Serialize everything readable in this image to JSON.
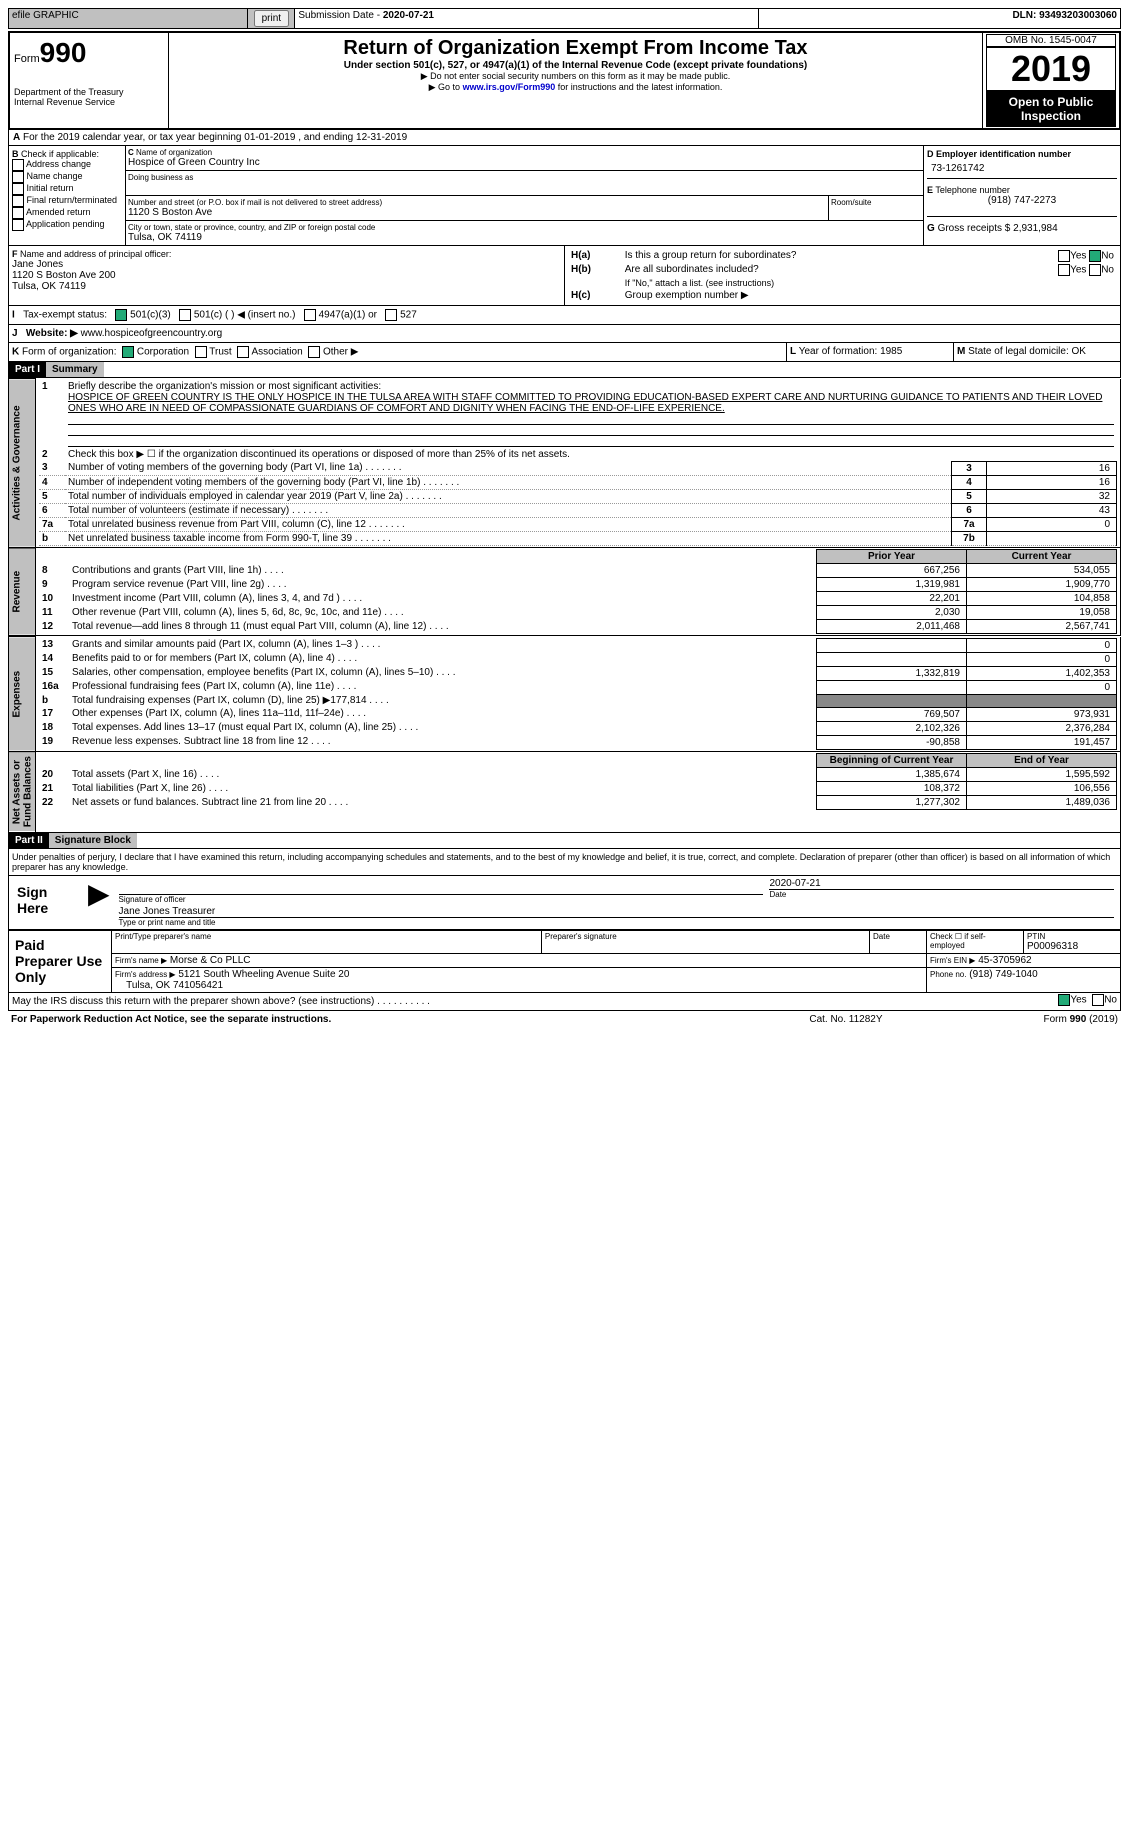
{
  "topbar": {
    "efile": "efile GRAPHIC",
    "print": "print",
    "subdate_label": "Submission Date - ",
    "subdate": "2020-07-21",
    "dln_label": "DLN: ",
    "dln": "93493203003060"
  },
  "header": {
    "form_prefix": "Form",
    "form_no": "990",
    "dept": "Department of the Treasury\nInternal Revenue Service",
    "title": "Return of Organization Exempt From Income Tax",
    "sub": "Under section 501(c), 527, or 4947(a)(1) of the Internal Revenue Code (except private foundations)",
    "note1": "▶ Do not enter social security numbers on this form as it may be made public.",
    "note2_pre": "▶ Go to ",
    "note2_link": "www.irs.gov/Form990",
    "note2_post": " for instructions and the latest information.",
    "omb": "OMB No. 1545-0047",
    "year": "2019",
    "pub": "Open to Public Inspection"
  },
  "A": {
    "line": "For the 2019 calendar year, or tax year beginning 01-01-2019   , and ending 12-31-2019"
  },
  "B": {
    "label": "Check if applicable:",
    "items": [
      "Address change",
      "Name change",
      "Initial return",
      "Final return/terminated",
      "Amended return",
      "Application pending"
    ]
  },
  "C": {
    "label": "Name of organization",
    "org": "Hospice of Green Country Inc",
    "dba_label": "Doing business as",
    "street_label": "Number and street (or P.O. box if mail is not delivered to street address)",
    "street": "1120 S Boston Ave",
    "room_label": "Room/suite",
    "city_label": "City or town, state or province, country, and ZIP or foreign postal code",
    "city": "Tulsa, OK  74119"
  },
  "D": {
    "label": "Employer identification number",
    "ein": "73-1261742"
  },
  "E": {
    "label": "Telephone number",
    "tel": "(918) 747-2273"
  },
  "G": {
    "label": "Gross receipts $",
    "val": "2,931,984"
  },
  "F": {
    "label": "Name and address of principal officer:",
    "name": "Jane Jones",
    "addr1": "1120 S Boston Ave 200",
    "addr2": "Tulsa, OK  74119"
  },
  "H": {
    "a_label": "Is this a group return for subordinates?",
    "a_yes": "Yes",
    "a_no": "No",
    "b_label": "Are all subordinates included?",
    "b_yes": "Yes",
    "b_no": "No",
    "b_note": "If \"No,\" attach a list. (see instructions)",
    "c_label": "Group exemption number ▶"
  },
  "I": {
    "label": "Tax-exempt status:",
    "opts": [
      "501(c)(3)",
      "501(c) (  ) ◀ (insert no.)",
      "4947(a)(1) or",
      "527"
    ]
  },
  "J": {
    "label": "Website: ▶",
    "val": "www.hospiceofgreencountry.org"
  },
  "K": {
    "label": "Form of organization:",
    "opts": [
      "Corporation",
      "Trust",
      "Association",
      "Other ▶"
    ]
  },
  "L": {
    "label": "Year of formation: ",
    "val": "1985"
  },
  "M": {
    "label": "State of legal domicile: ",
    "val": "OK"
  },
  "part1": {
    "hdr": "Part I",
    "title": "Summary",
    "l1_label": "Briefly describe the organization's mission or most significant activities:",
    "l1_text": "HOSPICE OF GREEN COUNTRY IS THE ONLY HOSPICE IN THE TULSA AREA WITH STAFF COMMITTED TO PROVIDING EDUCATION-BASED EXPERT CARE AND NURTURING GUIDANCE TO PATIENTS AND THEIR LOVED ONES WHO ARE IN NEED OF COMPASSIONATE GUARDIANS OF COMFORT AND DIGNITY WHEN FACING THE END-OF-LIFE EXPERIENCE.",
    "l2": "Check this box ▶ ☐  if the organization discontinued its operations or disposed of more than 25% of its net assets.",
    "gov_rows": [
      {
        "n": "3",
        "t": "Number of voting members of the governing body (Part VI, line 1a)",
        "box": "3",
        "v": "16"
      },
      {
        "n": "4",
        "t": "Number of independent voting members of the governing body (Part VI, line 1b)",
        "box": "4",
        "v": "16"
      },
      {
        "n": "5",
        "t": "Total number of individuals employed in calendar year 2019 (Part V, line 2a)",
        "box": "5",
        "v": "32"
      },
      {
        "n": "6",
        "t": "Total number of volunteers (estimate if necessary)",
        "box": "6",
        "v": "43"
      },
      {
        "n": "7a",
        "t": "Total unrelated business revenue from Part VIII, column (C), line 12",
        "box": "7a",
        "v": "0"
      },
      {
        "n": "b",
        "t": "Net unrelated business taxable income from Form 990-T, line 39",
        "box": "7b",
        "v": ""
      }
    ],
    "col_hdrs": [
      "Prior Year",
      "Current Year"
    ],
    "rev_rows": [
      {
        "n": "8",
        "t": "Contributions and grants (Part VIII, line 1h)",
        "p": "667,256",
        "c": "534,055"
      },
      {
        "n": "9",
        "t": "Program service revenue (Part VIII, line 2g)",
        "p": "1,319,981",
        "c": "1,909,770"
      },
      {
        "n": "10",
        "t": "Investment income (Part VIII, column (A), lines 3, 4, and 7d )",
        "p": "22,201",
        "c": "104,858"
      },
      {
        "n": "11",
        "t": "Other revenue (Part VIII, column (A), lines 5, 6d, 8c, 9c, 10c, and 11e)",
        "p": "2,030",
        "c": "19,058"
      },
      {
        "n": "12",
        "t": "Total revenue—add lines 8 through 11 (must equal Part VIII, column (A), line 12)",
        "p": "2,011,468",
        "c": "2,567,741"
      }
    ],
    "exp_rows": [
      {
        "n": "13",
        "t": "Grants and similar amounts paid (Part IX, column (A), lines 1–3 )",
        "p": "",
        "c": "0"
      },
      {
        "n": "14",
        "t": "Benefits paid to or for members (Part IX, column (A), line 4)",
        "p": "",
        "c": "0"
      },
      {
        "n": "15",
        "t": "Salaries, other compensation, employee benefits (Part IX, column (A), lines 5–10)",
        "p": "1,332,819",
        "c": "1,402,353"
      },
      {
        "n": "16a",
        "t": "Professional fundraising fees (Part IX, column (A), line 11e)",
        "p": "",
        "c": "0"
      },
      {
        "n": "b",
        "t": "Total fundraising expenses (Part IX, column (D), line 25) ▶177,814",
        "p": "dark",
        "c": "dark"
      },
      {
        "n": "17",
        "t": "Other expenses (Part IX, column (A), lines 11a–11d, 11f–24e)",
        "p": "769,507",
        "c": "973,931"
      },
      {
        "n": "18",
        "t": "Total expenses. Add lines 13–17 (must equal Part IX, column (A), line 25)",
        "p": "2,102,326",
        "c": "2,376,284"
      },
      {
        "n": "19",
        "t": "Revenue less expenses. Subtract line 18 from line 12",
        "p": "-90,858",
        "c": "191,457"
      }
    ],
    "na_hdrs": [
      "Beginning of Current Year",
      "End of Year"
    ],
    "na_rows": [
      {
        "n": "20",
        "t": "Total assets (Part X, line 16)",
        "p": "1,385,674",
        "c": "1,595,592"
      },
      {
        "n": "21",
        "t": "Total liabilities (Part X, line 26)",
        "p": "108,372",
        "c": "106,556"
      },
      {
        "n": "22",
        "t": "Net assets or fund balances. Subtract line 21 from line 20",
        "p": "1,277,302",
        "c": "1,489,036"
      }
    ],
    "section_labels": {
      "gov": "Activities & Governance",
      "rev": "Revenue",
      "exp": "Expenses",
      "na": "Net Assets or\nFund Balances"
    }
  },
  "part2": {
    "hdr": "Part II",
    "title": "Signature Block",
    "decl": "Under penalties of perjury, I declare that I have examined this return, including accompanying schedules and statements, and to the best of my knowledge and belief, it is true, correct, and complete. Declaration of preparer (other than officer) is based on all information of which preparer has any knowledge.",
    "sign_here": "Sign Here",
    "sig_officer": "Signature of officer",
    "date_label": "Date",
    "sig_date": "2020-07-21",
    "name_title": "Jane Jones Treasurer",
    "name_title_label": "Type or print name and title",
    "paid": "Paid Preparer Use Only",
    "prep_name_label": "Print/Type preparer's name",
    "prep_sig_label": "Preparer's signature",
    "prep_date_label": "Date",
    "check_self": "Check ☐ if self-employed",
    "ptin_label": "PTIN",
    "ptin": "P00096318",
    "firm_name_label": "Firm's name   ▶",
    "firm_name": "Morse & Co PLLC",
    "firm_ein_label": "Firm's EIN ▶",
    "firm_ein": "45-3705962",
    "firm_addr_label": "Firm's address ▶",
    "firm_addr": "5121 South Wheeling Avenue Suite 20",
    "firm_city": "Tulsa, OK  741056421",
    "phone_label": "Phone no.",
    "phone": "(918) 749-1040",
    "discuss": "May the IRS discuss this return with the preparer shown above? (see instructions)",
    "d_yes": "Yes",
    "d_no": "No"
  },
  "footer": {
    "pra": "For Paperwork Reduction Act Notice, see the separate instructions.",
    "cat": "Cat. No. 11282Y",
    "form": "Form 990 (2019)"
  }
}
